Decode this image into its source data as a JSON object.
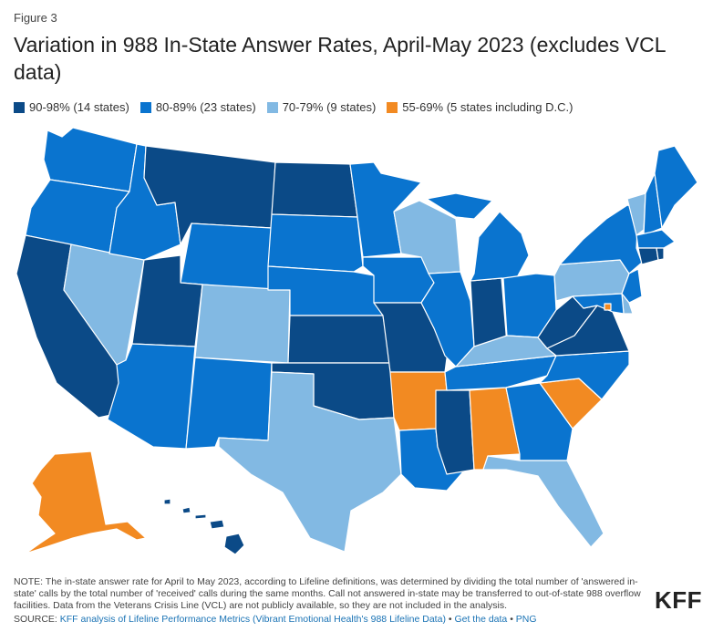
{
  "header": {
    "figure_label": "Figure 3",
    "title": "Variation in 988 In-State Answer Rates, April-May 2023 (excludes VCL data)"
  },
  "legend": [
    {
      "label": "90-98% (14 states)",
      "color": "#0b4a87"
    },
    {
      "label": "80-89% (23 states)",
      "color": "#0a74cf"
    },
    {
      "label": "70-79% (9 states)",
      "color": "#82b9e3"
    },
    {
      "label": "55-69% (5 states including D.C.)",
      "color": "#f28a22"
    }
  ],
  "map": {
    "type": "choropleth",
    "region": "United States",
    "categories": {
      "90-98%": [
        "Montana",
        "North Dakota",
        "Utah",
        "California",
        "Oklahoma",
        "Kansas",
        "Missouri",
        "Indiana",
        "Mississippi",
        "Virginia",
        "West Virginia",
        "Connecticut",
        "Rhode Island",
        "Hawaii"
      ],
      "80-89%": [
        "Washington",
        "Oregon",
        "Idaho",
        "Wyoming",
        "South Dakota",
        "Nebraska",
        "Minnesota",
        "Iowa",
        "Illinois",
        "Michigan",
        "Ohio",
        "Arizona",
        "New Mexico",
        "Tennessee",
        "Louisiana",
        "Georgia",
        "North Carolina",
        "New York",
        "Maine",
        "New Hampshire",
        "Massachusetts",
        "New Jersey",
        "Maryland"
      ],
      "70-79%": [
        "Nevada",
        "Colorado",
        "Texas",
        "Wisconsin",
        "Kentucky",
        "Pennsylvania",
        "Florida",
        "Vermont",
        "Delaware"
      ],
      "55-69%": [
        "Alaska",
        "Arkansas",
        "Alabama",
        "South Carolina",
        "District of Columbia"
      ]
    }
  },
  "footer": {
    "note": "NOTE: The in-state answer rate for April to May 2023, according to Lifeline definitions, was determined by dividing the total number of 'answered in-state' calls by the total number of 'received' calls during the same months. Call not answered in-state may be transferred to out-of-state 988 overflow facilities. Data from the Veterans Crisis Line (VCL) are not publicly available, so they are not included in the analysis.",
    "source_prefix": "SOURCE:",
    "source_link": "KFF analysis of Lifeline Performance Metrics (Vibrant Emotional Health's 988 Lifeline Data)",
    "get_data": "Get the data",
    "png": "PNG",
    "separator": "•",
    "logo": "KFF"
  }
}
